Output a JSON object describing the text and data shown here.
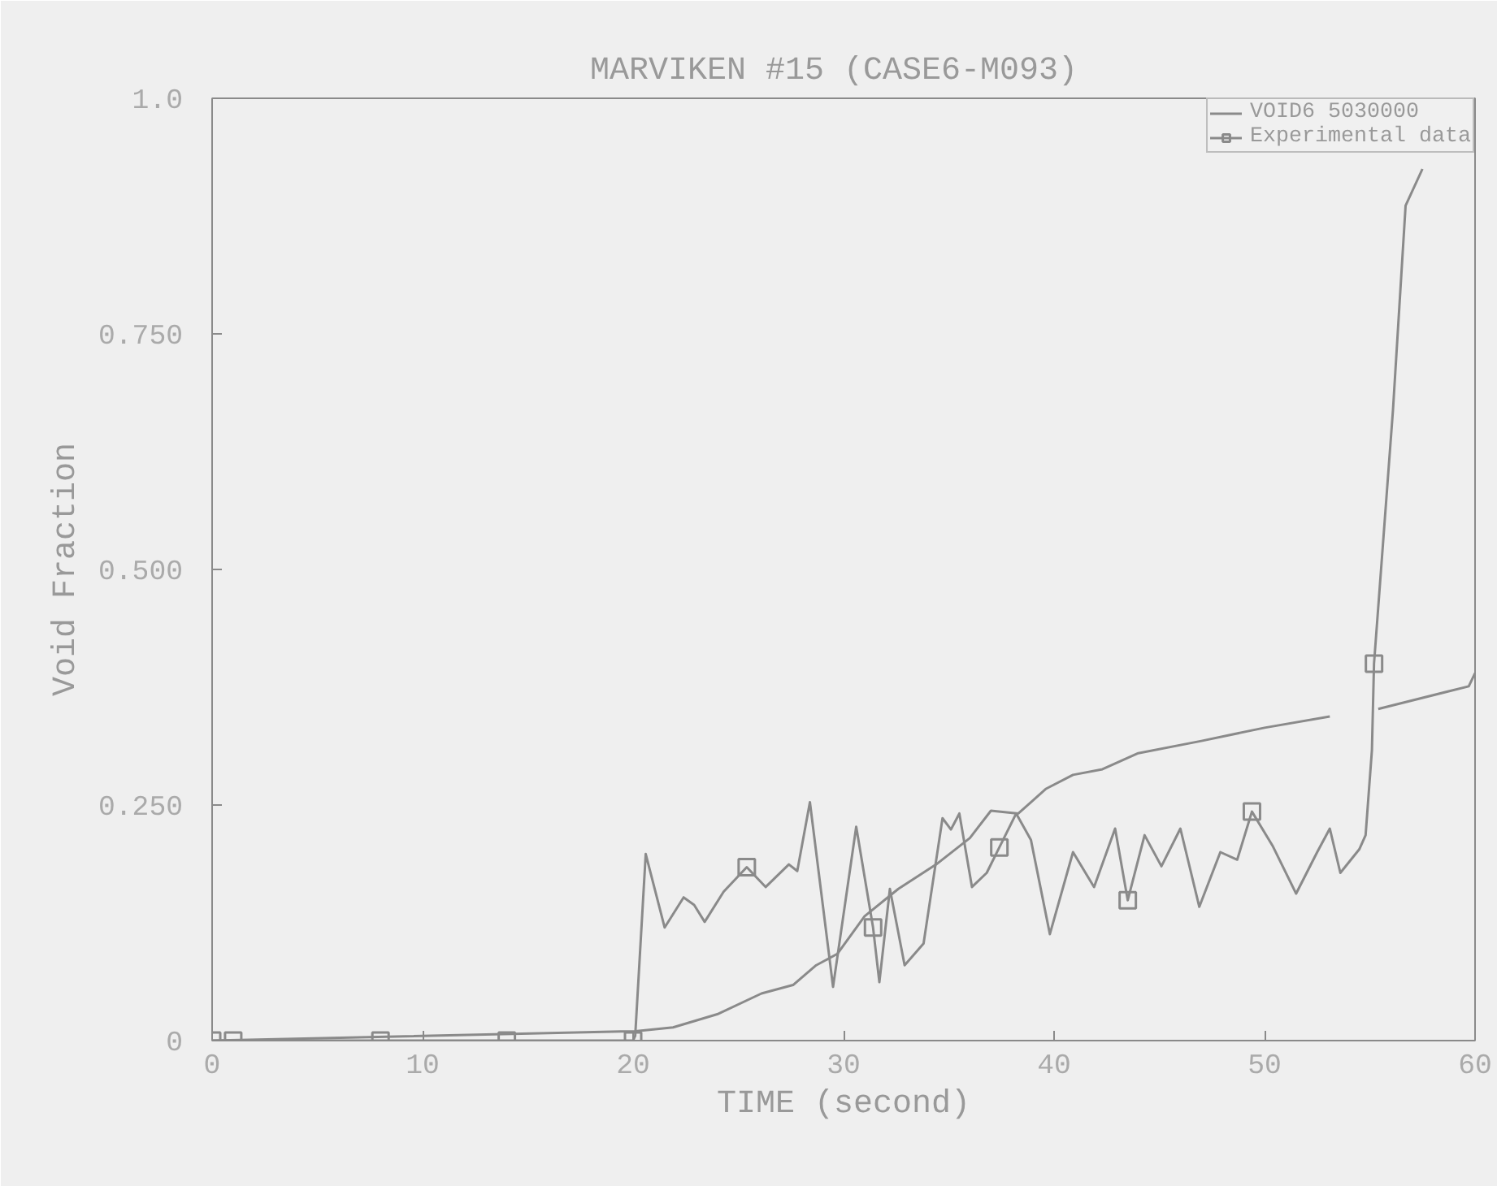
{
  "chart_data": {
    "type": "line",
    "title": "MARVIKEN #15  (CASE6-M093)",
    "xlabel": "TIME (second)",
    "ylabel": "Void Fraction",
    "xlim": [
      0,
      60
    ],
    "ylim": [
      0,
      1.0
    ],
    "xticks": [
      0,
      10,
      20,
      30,
      40,
      50,
      60
    ],
    "yticks": [
      0,
      {
        "value": 0.25,
        "label": "0.250"
      },
      {
        "value": 0.5,
        "label": "0.500"
      },
      {
        "value": 0.75,
        "label": "0.750"
      },
      {
        "value": 1.0,
        "label": "1.0"
      }
    ],
    "grid": false,
    "legend": "top right",
    "series": [
      {
        "name": "VOID6 5030000",
        "color": "#8a8a8a",
        "x": [
          0,
          20.1,
          21.9,
          24.0,
          26.1,
          27.6,
          28.7,
          29.7,
          31.0,
          32.6,
          34.4,
          36.0,
          37.0,
          38.3,
          39.6,
          40.9,
          42.3,
          44.0,
          47.0,
          50.0,
          53.1,
          54.2,
          55.4,
          59.7,
          60
        ],
        "values": [
          0,
          0.01,
          0.014,
          0.028,
          0.05,
          0.059,
          0.08,
          0.092,
          0.132,
          0.161,
          0.187,
          0.215,
          0.244,
          0.241,
          0.267,
          0.282,
          0.288,
          0.305,
          0.318,
          0.332,
          0.344,
          null,
          0.352,
          0.376,
          0.39
        ]
      },
      {
        "color": "#8a8a8a",
        "x": [
          0,
          20.0,
          20.1,
          20.6,
          21.5,
          22.4,
          22.9,
          23.4,
          24.3,
          25.4,
          26.3,
          27.4,
          27.8,
          28.4,
          29.5,
          30.6,
          31.4,
          31.7,
          32.2,
          32.9,
          33.8,
          34.7,
          35.1,
          35.5,
          36.1,
          36.8,
          37.4,
          38.2,
          38.9,
          39.8,
          40.9,
          41.9,
          42.9,
          43.5,
          44.3,
          45.1,
          46.0,
          46.9,
          47.9,
          48.7,
          49.4,
          50.4,
          51.5,
          52.5,
          53.1,
          53.6,
          54.5,
          54.8,
          55.1,
          55.2,
          56.1,
          56.7,
          57.5
        ],
        "values": [
          0,
          0,
          0.005,
          0.198,
          0.12,
          0.152,
          0.144,
          0.126,
          0.158,
          0.184,
          0.163,
          0.187,
          0.18,
          0.253,
          0.057,
          0.227,
          0.12,
          0.062,
          0.161,
          0.08,
          0.103,
          0.236,
          0.224,
          0.241,
          0.163,
          0.178,
          0.205,
          0.241,
          0.213,
          0.113,
          0.2,
          0.163,
          0.225,
          0.149,
          0.218,
          0.185,
          0.225,
          0.142,
          0.2,
          0.192,
          0.243,
          0.206,
          0.156,
          0.2,
          0.225,
          0.178,
          0.203,
          0.218,
          0.308,
          0.4,
          0.669,
          0.886,
          0.925
        ]
      },
      {
        "name": "Experimental data",
        "type": "scatter",
        "marker": "square",
        "color": "#8a8a8a",
        "x": [
          0,
          1,
          8,
          14,
          20,
          25.4,
          31.4,
          37.4,
          43.5,
          49.4,
          55.2
        ],
        "values": [
          0,
          0,
          0,
          0,
          0,
          0.184,
          0.12,
          0.205,
          0.149,
          0.243,
          0.4
        ]
      }
    ]
  }
}
